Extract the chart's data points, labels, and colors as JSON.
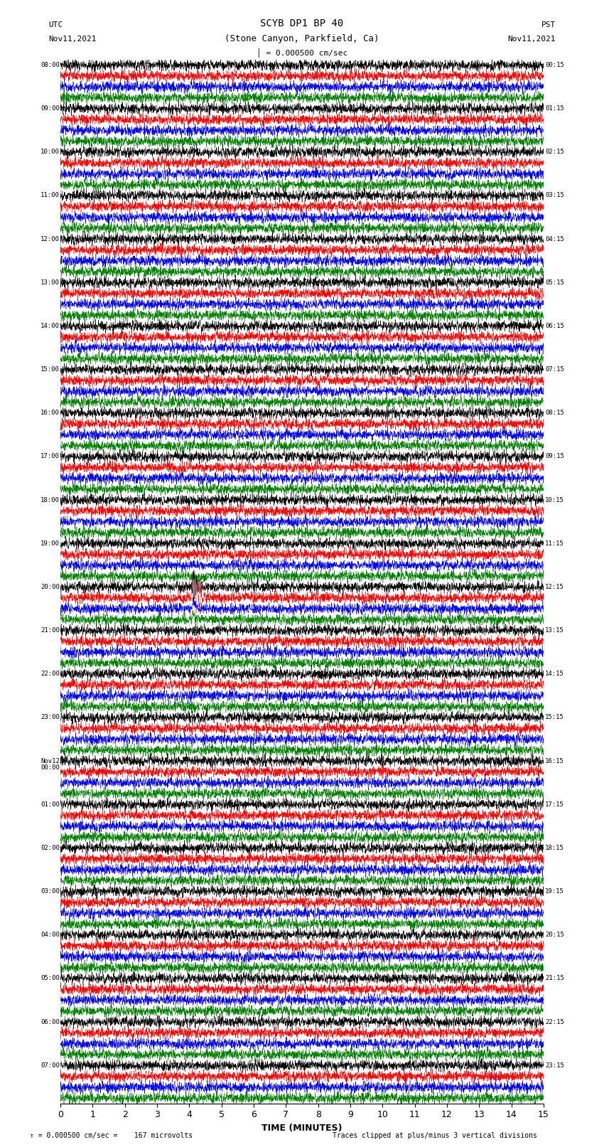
{
  "title_line1": "SCYB DP1 BP 40",
  "title_line2": "(Stone Canyon, Parkfield, Ca)",
  "scale_label": "= 0.000500 cm/sec",
  "left_label_top": "UTC",
  "left_label_bot": "Nov11,2021",
  "right_label_top": "PST",
  "right_label_bot": "Nov11,2021",
  "bottom_label": "TIME (MINUTES)",
  "footer_left": "= 0.000500 cm/sec =    167 microvolts",
  "footer_right": "Traces clipped at plus/minus 3 vertical divisions",
  "trace_colors": [
    "black",
    "red",
    "blue",
    "green"
  ],
  "num_groups": 24,
  "traces_per_group": 4,
  "fig_width": 8.5,
  "fig_height": 16.13,
  "xlim": [
    0,
    15
  ],
  "xticks": [
    0,
    1,
    2,
    3,
    4,
    5,
    6,
    7,
    8,
    9,
    10,
    11,
    12,
    13,
    14,
    15
  ],
  "left_times": [
    "08:00",
    "09:00",
    "10:00",
    "11:00",
    "12:00",
    "13:00",
    "14:00",
    "15:00",
    "16:00",
    "17:00",
    "18:00",
    "19:00",
    "20:00",
    "21:00",
    "22:00",
    "23:00",
    "Nov12\n00:00",
    "01:00",
    "02:00",
    "03:00",
    "04:00",
    "05:00",
    "06:00",
    "07:00"
  ],
  "right_times": [
    "00:15",
    "01:15",
    "02:15",
    "03:15",
    "04:15",
    "05:15",
    "06:15",
    "07:15",
    "08:15",
    "09:15",
    "10:15",
    "11:15",
    "12:15",
    "13:15",
    "14:15",
    "15:15",
    "16:15",
    "17:15",
    "18:15",
    "19:15",
    "20:15",
    "21:15",
    "22:15",
    "23:15"
  ],
  "noise_amplitude": 0.22,
  "noise_smoothing": 2,
  "background_color": "white",
  "grid_color": "#aaaaaa",
  "earthquake_group": 12,
  "earthquake_trace": 1,
  "earthquake_minute": 4.1,
  "earthquake_amplitude": 3.5,
  "earthquake_red_group": 12,
  "green_dot_group": 22,
  "green_dot_trace": 3,
  "green_dot_minute": 14.5,
  "blue_dot_group": 23,
  "blue_dot_trace": 2,
  "blue_dot_minute": 13.5
}
